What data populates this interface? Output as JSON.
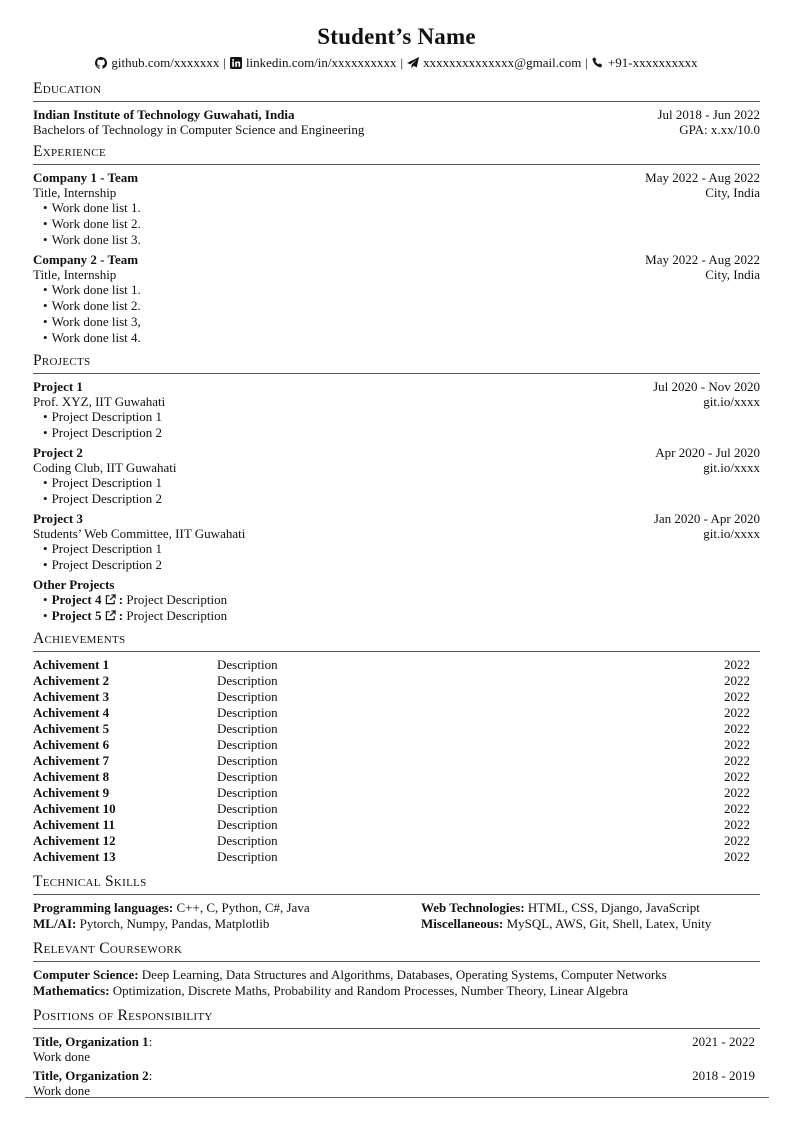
{
  "header": {
    "name": "Student’s Name",
    "contacts": [
      {
        "icon": "github-icon",
        "text": "github.com/xxxxxxx"
      },
      {
        "icon": "linkedin-icon",
        "text": "linkedin.com/in/xxxxxxxxxx"
      },
      {
        "icon": "paper-plane-icon",
        "text": "xxxxxxxxxxxxxx@gmail.com"
      },
      {
        "icon": "phone-icon",
        "text": "+91-xxxxxxxxxx"
      }
    ],
    "separator": "|"
  },
  "education": {
    "heading": "Education",
    "entries": [
      {
        "title": "Indian Institute of Technology Guwahati, India",
        "date": "Jul 2018 - Jun 2022",
        "subtitle": "Bachelors of Technology in Computer Science and Engineering",
        "right2": "GPA: x.xx/10.0"
      }
    ]
  },
  "experience": {
    "heading": "Experience",
    "entries": [
      {
        "title": "Company 1 - Team",
        "date": "May 2022 - Aug 2022",
        "subtitle": "Title, Internship",
        "right2": "City, India",
        "items": [
          "Work done list 1.",
          "Work done list 2.",
          "Work done list 3."
        ]
      },
      {
        "title": "Company 2 - Team",
        "date": "May 2022 - Aug 2022",
        "subtitle": "Title, Internship",
        "right2": "City, India",
        "items": [
          "Work done list 1.",
          "Work done list 2.",
          "Work done list 3,",
          "Work done list 4."
        ]
      }
    ]
  },
  "projects": {
    "heading": "Projects",
    "entries": [
      {
        "title": "Project 1",
        "date": "Jul 2020 - Nov 2020",
        "subtitle": "Prof. XYZ, IIT Guwahati",
        "right2": "git.io/xxxx",
        "items": [
          "Project Description 1",
          "Project Description 2"
        ]
      },
      {
        "title": "Project 2",
        "date": "Apr 2020 - Jul 2020",
        "subtitle": "Coding Club, IIT Guwahati",
        "right2": "git.io/xxxx",
        "items": [
          "Project Description 1",
          "Project Description 2"
        ]
      },
      {
        "title": "Project 3",
        "date": "Jan 2020 - Apr 2020",
        "subtitle": "Students’ Web Committee, IIT Guwahati",
        "right2": "git.io/xxxx",
        "items": [
          "Project Description 1",
          "Project Description 2"
        ]
      }
    ],
    "other": {
      "title": "Other Projects",
      "items": [
        {
          "name": "Project 4",
          "desc": "Project Description"
        },
        {
          "name": "Project 5",
          "desc": "Project Description"
        }
      ],
      "colon": ":"
    }
  },
  "achievements": {
    "heading": "Achievements",
    "rows": [
      {
        "name": "Achivement 1",
        "desc": "Description",
        "year": "2022"
      },
      {
        "name": "Achivement 2",
        "desc": "Description",
        "year": "2022"
      },
      {
        "name": "Achivement 3",
        "desc": "Description",
        "year": "2022"
      },
      {
        "name": "Achivement 4",
        "desc": "Description",
        "year": "2022"
      },
      {
        "name": "Achivement 5",
        "desc": "Description",
        "year": "2022"
      },
      {
        "name": "Achivement 6",
        "desc": "Description",
        "year": "2022"
      },
      {
        "name": "Achivement 7",
        "desc": "Description",
        "year": "2022"
      },
      {
        "name": "Achivement 8",
        "desc": "Description",
        "year": "2022"
      },
      {
        "name": "Achivement 9",
        "desc": "Description",
        "year": "2022"
      },
      {
        "name": "Achivement 10",
        "desc": "Description",
        "year": "2022"
      },
      {
        "name": "Achivement 11",
        "desc": "Description",
        "year": "2022"
      },
      {
        "name": "Achivement 12",
        "desc": "Description",
        "year": "2022"
      },
      {
        "name": "Achivement 13",
        "desc": "Description",
        "year": "2022"
      }
    ]
  },
  "skills": {
    "heading": "Technical Skills",
    "items": [
      {
        "label": "Programming languages:",
        "value": "C++, C, Python, C#, Java"
      },
      {
        "label": "Web Technologies:",
        "value": "HTML, CSS, Django, JavaScript"
      },
      {
        "label": "ML/AI:",
        "value": "Pytorch, Numpy, Pandas, Matplotlib"
      },
      {
        "label": "Miscellaneous:",
        "value": "MySQL, AWS, Git, Shell, Latex, Unity"
      }
    ]
  },
  "coursework": {
    "heading": "Relevant Coursework",
    "items": [
      {
        "label": "Computer Science:",
        "value": "Deep Learning, Data Structures and Algorithms, Databases, Operating Systems, Computer Networks"
      },
      {
        "label": "Mathematics:",
        "value": "Optimization, Discrete Maths, Probability and Random Processes, Number Theory, Linear Algebra"
      }
    ]
  },
  "positions": {
    "heading": "Positions of Responsibility",
    "entries": [
      {
        "title": "Title, Organization 1",
        "date": "2021 - 2022",
        "work": "Work done"
      },
      {
        "title": "Title, Organization 2",
        "date": "2018 - 2019",
        "work": "Work done"
      }
    ]
  }
}
